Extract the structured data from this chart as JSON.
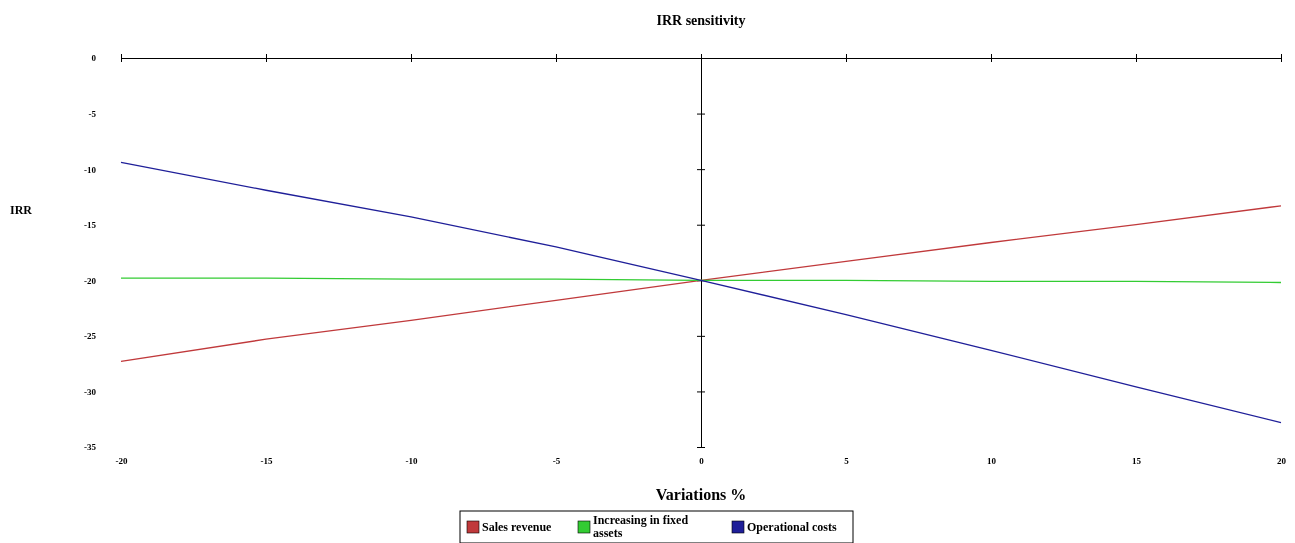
{
  "chart_data": {
    "type": "line",
    "title": "IRR sensitivity",
    "xlabel": "Variations %",
    "ylabel": "IRR",
    "x": [
      -20,
      -15,
      -10,
      -5,
      0,
      5,
      10,
      15,
      20
    ],
    "series": [
      {
        "name": "Sales revenue",
        "color": "#c0393b",
        "values": [
          -27.3,
          -25.3,
          -23.6,
          -21.8,
          -20,
          -18.3,
          -16.6,
          -15.0,
          -13.3
        ]
      },
      {
        "name": "Increasing in fixed assets",
        "color": "#33cc33",
        "values": [
          -19.8,
          -19.8,
          -19.9,
          -19.9,
          -20,
          -20,
          -20.1,
          -20.1,
          -20.2
        ]
      },
      {
        "name": "Operational costs",
        "color": "#1f1f99",
        "values": [
          -9.4,
          -11.9,
          -14.3,
          -17.0,
          -20,
          -23.1,
          -26.3,
          -29.6,
          -32.8
        ]
      }
    ],
    "xlim": [
      -20,
      20
    ],
    "xticks": [
      -20,
      -15,
      -10,
      -5,
      0,
      5,
      10,
      15,
      20
    ],
    "ylim": [
      -35,
      0
    ],
    "yticks": [
      -35,
      -30,
      -25,
      -20,
      -15,
      -10,
      -5,
      0
    ],
    "legend": "bottom",
    "marker": "none",
    "line_style": "solid"
  }
}
